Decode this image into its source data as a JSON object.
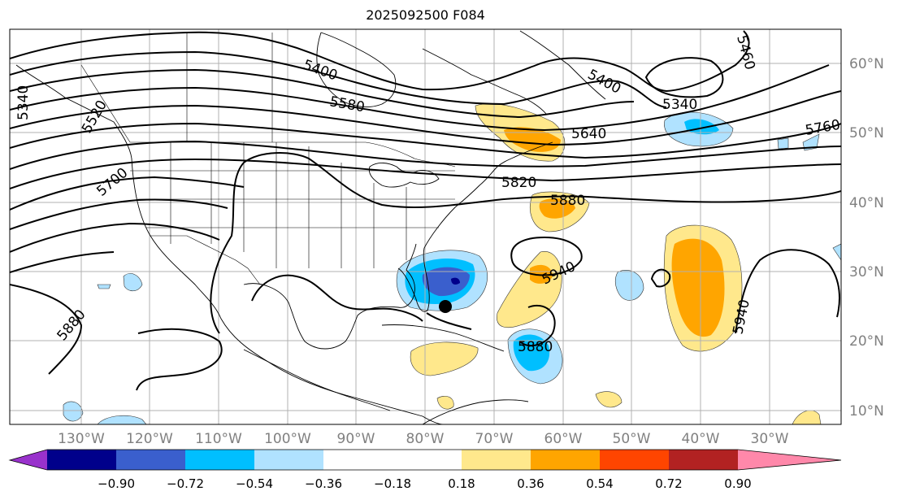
{
  "title": "2025092500 F084",
  "map": {
    "lat_labels": [
      "60°N",
      "50°N",
      "40°N",
      "30°N",
      "20°N",
      "10°N"
    ],
    "lon_labels": [
      "130°W",
      "120°W",
      "110°W",
      "100°W",
      "90°W",
      "80°W",
      "70°W",
      "60°W",
      "50°W",
      "40°W",
      "30°W"
    ],
    "contour_labels": [
      "5400",
      "5580",
      "5340",
      "5520",
      "5700",
      "5400",
      "5460",
      "5340",
      "5640",
      "5760",
      "5820",
      "5880",
      "5940",
      "5940",
      "5880",
      "5880"
    ],
    "storm_marker": "filled-circle"
  },
  "colorbar": {
    "tick_labels": [
      "−0.90",
      "−0.72",
      "−0.54",
      "−0.36",
      "−0.18",
      "0.18",
      "0.36",
      "0.54",
      "0.72",
      "0.90"
    ],
    "colors": [
      "#9932CC",
      "#00008B",
      "#3A5FCD",
      "#00BFFF",
      "#B0E2FF",
      "#FFFFFF",
      "#FFE88C",
      "#FFA500",
      "#FF4500",
      "#B22222",
      "#FF88AA"
    ]
  }
}
